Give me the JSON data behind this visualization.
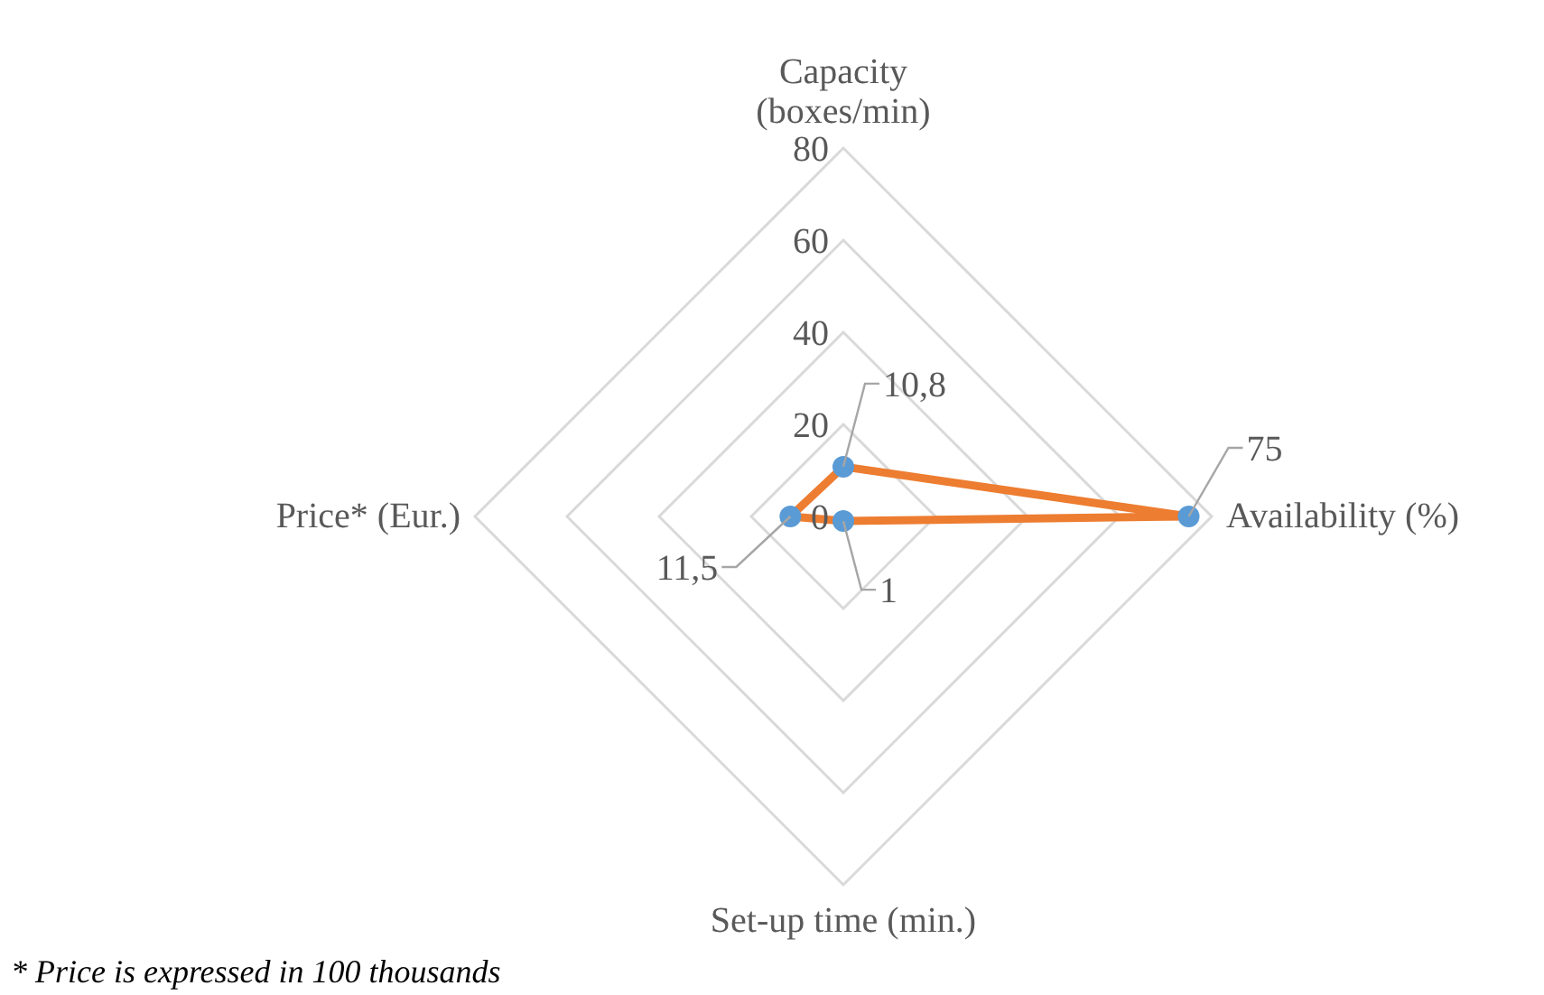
{
  "chart_data": {
    "type": "radar",
    "categories": [
      "Capacity (boxes/min)",
      "Availability (%)",
      "Set-up time (min.)",
      "Price* (Eur.)"
    ],
    "series": [
      {
        "color": "#ed7d31",
        "colors": [
          "#5b9bd5",
          "#5b9bd5",
          "#5b9bd5",
          "#5b9bd5"
        ],
        "values": [
          10.8,
          75,
          1,
          11.5
        ],
        "value_labels": [
          "10,8",
          "75",
          "1",
          "11,5"
        ]
      }
    ],
    "ylim": [
      0,
      80
    ],
    "yticks": [
      0,
      20,
      40,
      60,
      80
    ],
    "grid": true,
    "marker": "circle",
    "annotations": [
      "* Price is expressed in 100 thousands"
    ]
  }
}
